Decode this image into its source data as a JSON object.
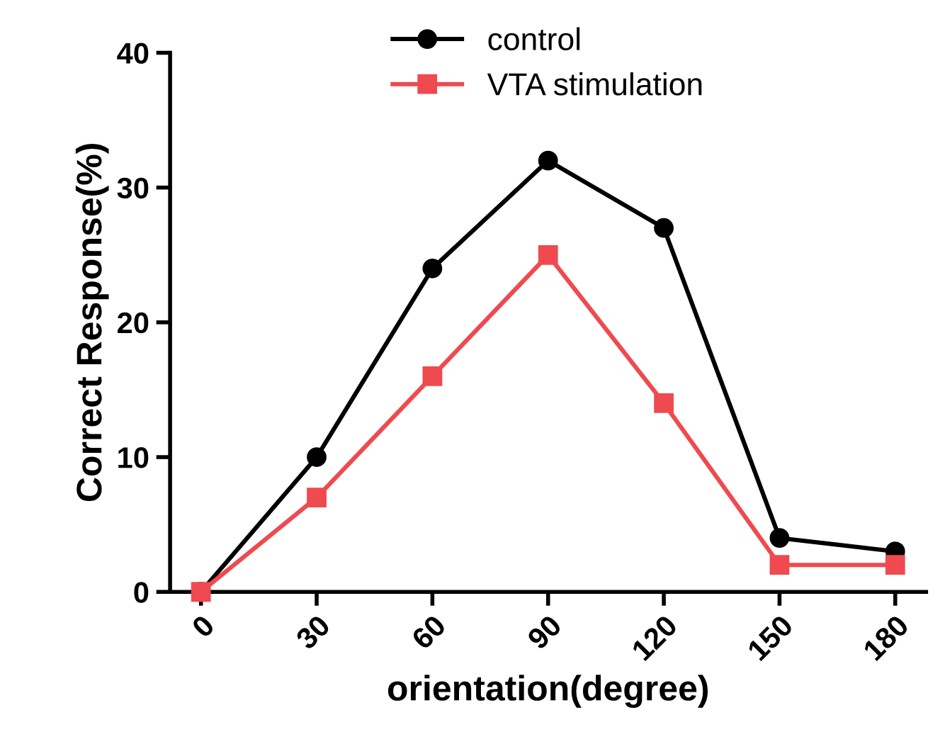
{
  "chart_data": {
    "type": "line",
    "xlabel": "orientation(degree)",
    "ylabel": "Correct Response(%)",
    "x": [
      0,
      30,
      60,
      90,
      120,
      150,
      180
    ],
    "series": [
      {
        "name": "control",
        "color": "#000000",
        "values": [
          0,
          10,
          24,
          32,
          27,
          4,
          3
        ],
        "marker": "circle"
      },
      {
        "name": "VTA stimulation",
        "color": "#ef4a4f",
        "values": [
          0,
          7,
          16,
          25,
          14,
          2,
          2
        ],
        "marker": "square"
      }
    ],
    "xlim": [
      -8,
      188
    ],
    "ylim": [
      0,
      40
    ],
    "xticks": [
      0,
      30,
      60,
      90,
      120,
      150,
      180
    ],
    "yticks": [
      0,
      10,
      20,
      30,
      40
    ],
    "grid": false,
    "legend": "top",
    "line_style": "solid"
  }
}
